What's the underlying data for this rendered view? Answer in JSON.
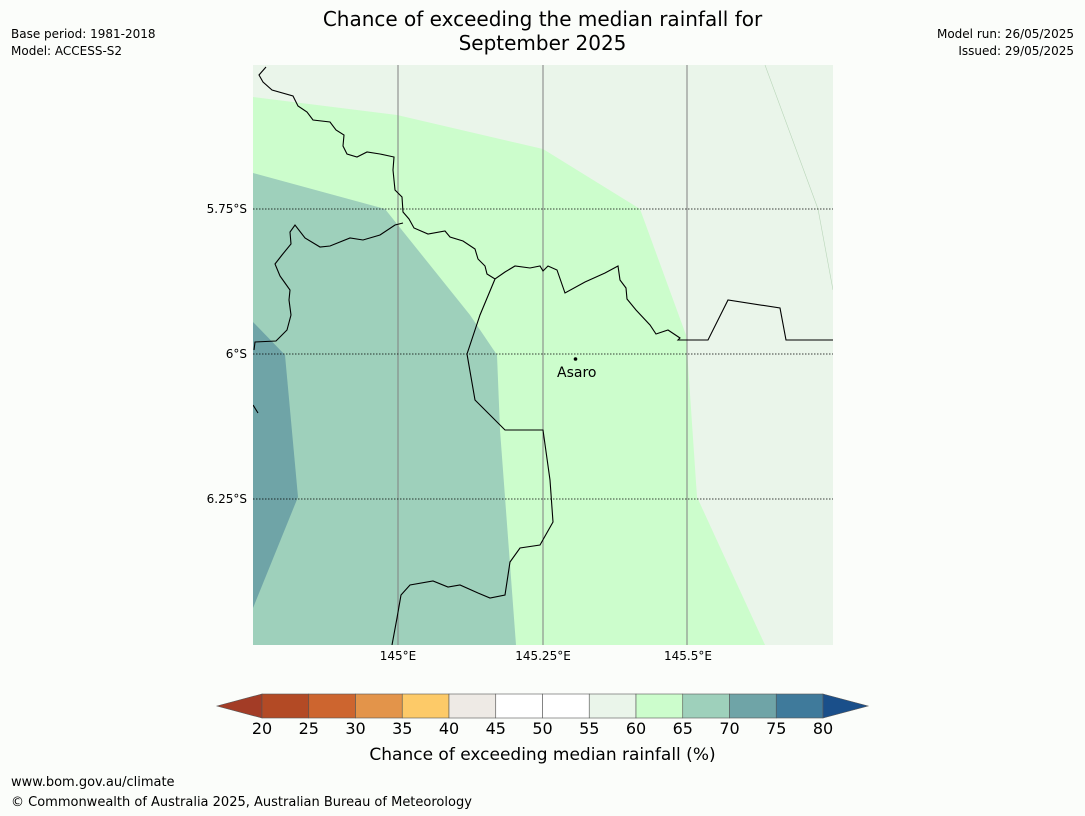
{
  "header": {
    "title_line1": "Chance of exceeding the median rainfall for",
    "title_line2": "September 2025",
    "base_period": "Base period: 1981-2018",
    "model": "Model: ACCESS-S2",
    "model_run": "Model run: 26/05/2025",
    "issued": "Issued: 29/05/2025"
  },
  "map": {
    "lat_labels": [
      "5.75°S",
      "6°S",
      "6.25°S"
    ],
    "lon_labels": [
      "145°E",
      "145.25°E",
      "145.5°E"
    ],
    "place": "Asaro",
    "colors": {
      "band_55_60": "#eaf5ea",
      "band_60_65": "#ccfdcc",
      "band_65_70": "#9ed0bb",
      "band_70_75": "#6fa4a7",
      "boundary": "#000000",
      "gridline": "#808080"
    }
  },
  "legend": {
    "title": "Chance of exceeding median rainfall (%)",
    "ticks": [
      "20",
      "25",
      "30",
      "35",
      "40",
      "45",
      "50",
      "55",
      "60",
      "65",
      "70",
      "75",
      "80"
    ],
    "colors": [
      "#a33c26",
      "#b34a25",
      "#cd652f",
      "#e3944a",
      "#fdca68",
      "#eeeae5",
      "#ffffff",
      "#ffffff",
      "#eaf5ea",
      "#ccfdcc",
      "#9ed0bb",
      "#6fa4a7",
      "#3f7a9b",
      "#1a4f8a"
    ]
  },
  "footer": {
    "url": "www.bom.gov.au/climate",
    "copyright": "© Commonwealth of Australia 2025, Australian Bureau of Meteorology"
  }
}
